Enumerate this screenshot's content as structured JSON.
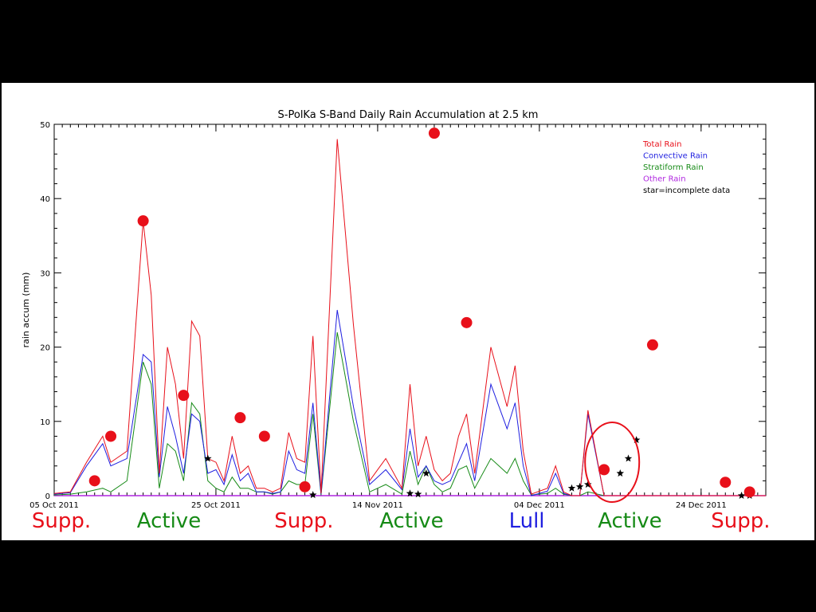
{
  "chart_data": {
    "type": "line",
    "title": "S-PolKa S-Band Daily Rain Accumulation at 2.5 km",
    "xlabel": "",
    "ylabel": "rain accum (mm)",
    "xlim": [
      "2011-10-05",
      "2012-01-01"
    ],
    "ylim": [
      0,
      50
    ],
    "yticks": [
      0,
      10,
      20,
      30,
      40,
      50
    ],
    "xtick_labels": [
      {
        "date": "2011-10-05",
        "label": "05 Oct 2011"
      },
      {
        "date": "2011-10-25",
        "label": "25 Oct 2011"
      },
      {
        "date": "2011-11-14",
        "label": "14 Nov 2011"
      },
      {
        "date": "2011-12-04",
        "label": "04 Dec 2011"
      },
      {
        "date": "2011-12-24",
        "label": "24 Dec 2011"
      }
    ],
    "grid": false,
    "legend_position": "top-right",
    "legend": [
      {
        "label": "Total Rain",
        "color": "#e8101a"
      },
      {
        "label": "Convective Rain",
        "color": "#1f1fe0"
      },
      {
        "label": "Stratiform Rain",
        "color": "#168a16"
      },
      {
        "label": "Other Rain",
        "color": "#b026e0"
      },
      {
        "label": "star=incomplete data",
        "color": "#000000"
      }
    ],
    "x": [
      "2011-10-05",
      "2011-10-07",
      "2011-10-09",
      "2011-10-11",
      "2011-10-12",
      "2011-10-14",
      "2011-10-16",
      "2011-10-17",
      "2011-10-18",
      "2011-10-19",
      "2011-10-20",
      "2011-10-21",
      "2011-10-22",
      "2011-10-23",
      "2011-10-24",
      "2011-10-25",
      "2011-10-26",
      "2011-10-27",
      "2011-10-28",
      "2011-10-29",
      "2011-10-30",
      "2011-10-31",
      "2011-11-01",
      "2011-11-02",
      "2011-11-03",
      "2011-11-04",
      "2011-11-05",
      "2011-11-06",
      "2011-11-07",
      "2011-11-09",
      "2011-11-11",
      "2011-11-13",
      "2011-11-14",
      "2011-11-15",
      "2011-11-17",
      "2011-11-18",
      "2011-11-19",
      "2011-11-20",
      "2011-11-21",
      "2011-11-22",
      "2011-11-23",
      "2011-11-24",
      "2011-11-25",
      "2011-11-26",
      "2011-11-28",
      "2011-11-30",
      "2011-12-01",
      "2011-12-02",
      "2011-12-03",
      "2011-12-05",
      "2011-12-06",
      "2011-12-07",
      "2011-12-08",
      "2011-12-09",
      "2011-12-10",
      "2011-12-12",
      "2011-12-13",
      "2011-12-14",
      "2011-12-15",
      "2011-12-16",
      "2011-12-17",
      "2011-12-18",
      "2011-12-19",
      "2011-12-20",
      "2011-12-21",
      "2011-12-22",
      "2011-12-23",
      "2011-12-24",
      "2011-12-26",
      "2011-12-27",
      "2011-12-28",
      "2011-12-30",
      "2012-01-01"
    ],
    "series": [
      {
        "name": "Total Rain",
        "color": "#e8101a",
        "values": [
          0.3,
          0.5,
          4.5,
          8,
          4.5,
          6,
          37,
          27,
          3,
          20,
          15,
          5,
          23.5,
          21.5,
          5,
          4.5,
          2,
          8,
          3,
          4,
          1,
          1,
          0.5,
          1,
          8.5,
          5,
          4.5,
          21.5,
          0.3,
          48,
          23,
          2,
          3.5,
          5,
          1,
          15,
          4,
          8,
          3.5,
          2,
          3,
          8,
          11,
          3,
          20,
          12,
          17.5,
          6,
          0.2,
          1,
          4,
          0.5,
          0,
          0,
          11.5,
          0,
          0,
          0,
          0,
          0,
          0,
          0,
          0,
          0,
          0,
          0,
          0,
          0,
          0,
          0,
          0,
          0,
          0
        ]
      },
      {
        "name": "Convective Rain",
        "color": "#1f1fe0",
        "values": [
          0.2,
          0.4,
          4,
          7,
          4,
          5,
          19,
          18,
          2.5,
          12,
          8,
          3,
          11,
          10,
          3,
          3.5,
          1.5,
          5.5,
          2,
          3,
          0.5,
          0.5,
          0.3,
          0.5,
          6,
          3.5,
          3,
          12.5,
          0.2,
          25,
          12,
          1.5,
          2.5,
          3.5,
          0.8,
          9,
          2.5,
          4,
          2,
          1.5,
          2,
          4.5,
          7,
          2,
          15,
          9,
          12.5,
          4,
          0,
          0.6,
          3,
          0.3,
          0,
          0,
          11,
          0,
          0,
          0,
          0,
          0,
          0,
          0,
          0,
          0,
          0,
          0,
          0,
          0,
          0,
          0,
          0,
          0,
          0
        ]
      },
      {
        "name": "Stratiform Rain",
        "color": "#168a16",
        "values": [
          0.1,
          0.2,
          0.5,
          1,
          0.5,
          2,
          18,
          15,
          1,
          7,
          6,
          2,
          12.5,
          11,
          2,
          1,
          0.5,
          2.5,
          1,
          1,
          0.5,
          0.5,
          0.2,
          0.5,
          2,
          1.5,
          1.5,
          11,
          0.1,
          22,
          10,
          0.5,
          1,
          1.5,
          0.2,
          6,
          1.5,
          4,
          1.5,
          0.5,
          1,
          3.5,
          4,
          1,
          5,
          3,
          5,
          2,
          0.1,
          0.3,
          1,
          0.2,
          0,
          0,
          0.5,
          0,
          0,
          0,
          0,
          0,
          0,
          0,
          0,
          0,
          0,
          0,
          0,
          0,
          0,
          0,
          0,
          0,
          0
        ]
      },
      {
        "name": "Other Rain",
        "color": "#b026e0",
        "values": [
          0,
          0,
          0,
          0,
          0,
          0,
          0,
          0,
          0,
          0,
          0,
          0,
          0,
          0,
          0,
          0,
          0,
          0,
          0,
          0,
          0,
          0,
          0,
          0,
          0,
          0,
          0,
          0,
          0,
          0,
          0,
          0,
          0,
          0,
          0,
          0,
          0,
          0,
          0,
          0,
          0,
          0,
          0,
          0,
          0,
          0,
          0,
          0,
          0,
          0,
          0,
          0,
          0,
          0,
          0,
          0,
          0,
          0,
          0,
          0,
          0,
          0,
          0,
          0,
          0,
          0,
          0,
          0,
          0,
          0,
          0,
          0,
          0
        ]
      }
    ],
    "red_dots": [
      {
        "x": "2011-10-10",
        "y": 2
      },
      {
        "x": "2011-10-12",
        "y": 8
      },
      {
        "x": "2011-10-16",
        "y": 37
      },
      {
        "x": "2011-10-21",
        "y": 13.5
      },
      {
        "x": "2011-10-28",
        "y": 10.5
      },
      {
        "x": "2011-10-31",
        "y": 8
      },
      {
        "x": "2011-11-05",
        "y": 1.2
      },
      {
        "x": "2011-11-21",
        "y": 48.8
      },
      {
        "x": "2011-11-25",
        "y": 23.3
      },
      {
        "x": "2011-12-12",
        "y": 3.5
      },
      {
        "x": "2011-12-18",
        "y": 20.3
      },
      {
        "x": "2011-12-27",
        "y": 1.8
      },
      {
        "x": "2011-12-30",
        "y": 0.5
      }
    ],
    "stars": [
      {
        "x": "2011-10-24",
        "y": 5
      },
      {
        "x": "2011-11-06",
        "y": 0.1
      },
      {
        "x": "2011-11-18",
        "y": 0.3
      },
      {
        "x": "2011-11-19",
        "y": 0.2
      },
      {
        "x": "2011-11-20",
        "y": 3
      },
      {
        "x": "2011-12-08",
        "y": 1
      },
      {
        "x": "2011-12-09",
        "y": 1.2
      },
      {
        "x": "2011-12-10",
        "y": 1.5
      },
      {
        "x": "2011-12-14",
        "y": 3
      },
      {
        "x": "2011-12-15",
        "y": 5
      },
      {
        "x": "2011-12-16",
        "y": 7.5
      },
      {
        "x": "2011-12-29",
        "y": 0
      },
      {
        "x": "2011-12-30",
        "y": 0
      }
    ],
    "highlight_circle": {
      "x": "2011-12-13",
      "y": 4.5
    },
    "phase_labels": [
      {
        "label": "Supp.",
        "color": "#e8101a",
        "x": "2011-10-04"
      },
      {
        "label": "Active",
        "color": "#168a16",
        "x": "2011-10-17"
      },
      {
        "label": "Supp.",
        "color": "#e8101a",
        "x": "2011-11-03"
      },
      {
        "label": "Active",
        "color": "#168a16",
        "x": "2011-11-16"
      },
      {
        "label": "Lull",
        "color": "#1f1fe0",
        "x": "2011-12-02"
      },
      {
        "label": "Active",
        "color": "#168a16",
        "x": "2011-12-13"
      },
      {
        "label": "Supp.",
        "color": "#e8101a",
        "x": "2011-12-27"
      }
    ]
  }
}
